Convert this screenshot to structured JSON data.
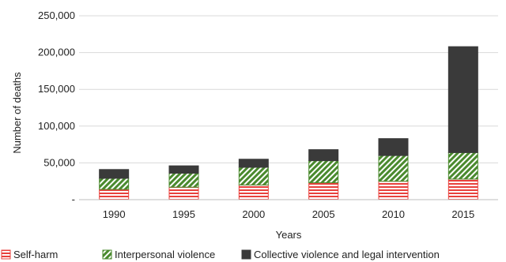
{
  "chart_data": {
    "type": "bar",
    "stacked": true,
    "categories": [
      "1990",
      "1995",
      "2000",
      "2005",
      "2010",
      "2015"
    ],
    "series": [
      {
        "name": "Self-harm",
        "values": [
          14000,
          17000,
          20000,
          23000,
          25000,
          28000
        ],
        "color": "#e8413c",
        "pattern": "horizontal-lines"
      },
      {
        "name": "Interpersonal violence",
        "values": [
          15000,
          19000,
          24000,
          30000,
          35000,
          36000
        ],
        "color": "#4a8a2e",
        "pattern": "diagonal-hatch"
      },
      {
        "name": "Collective violence and legal intervention",
        "values": [
          12000,
          10000,
          11000,
          15000,
          23000,
          144000
        ],
        "color": "#3a3a3a",
        "pattern": "solid"
      }
    ],
    "xlabel": "Years",
    "ylabel": "Number of deaths",
    "ylim": [
      0,
      250000
    ],
    "yticks": [
      0,
      50000,
      100000,
      150000,
      200000,
      250000
    ],
    "ytick_labels": [
      "-",
      "50,000",
      "100,000",
      "150,000",
      "200,000",
      "250,000"
    ],
    "grid": true,
    "legend_position": "bottom"
  }
}
